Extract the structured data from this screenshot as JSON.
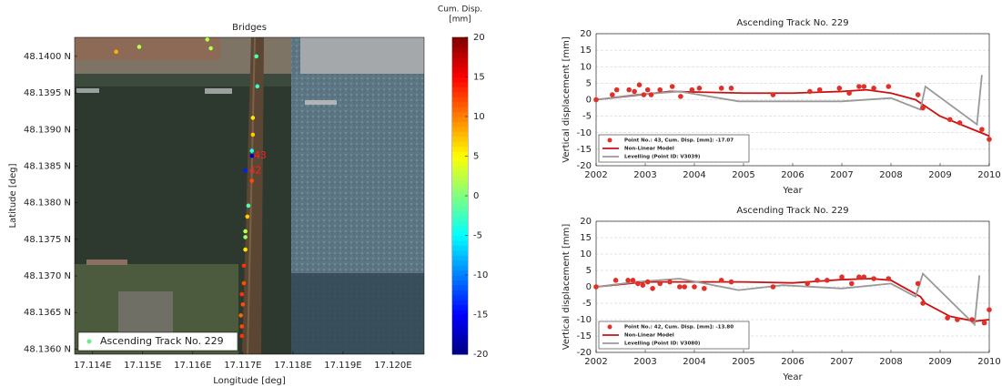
{
  "chart_data": [
    {
      "type": "scatter",
      "title": "Bridges",
      "xlabel": "Longitude [deg]",
      "ylabel": "Latitude [deg]",
      "xlim": [
        17.11364,
        17.12062
      ],
      "ylim": [
        48.13593,
        48.14026
      ],
      "xticks": [
        {
          "value": 17.114,
          "label": "17.114E"
        },
        {
          "value": 17.115,
          "label": "17.115E"
        },
        {
          "value": 17.116,
          "label": "17.116E"
        },
        {
          "value": 17.117,
          "label": "17.117E"
        },
        {
          "value": 17.118,
          "label": "17.118E"
        },
        {
          "value": 17.119,
          "label": "17.119E"
        },
        {
          "value": 17.12,
          "label": "17.120E"
        }
      ],
      "yticks": [
        {
          "value": 48.14,
          "label": "48.1400 N"
        },
        {
          "value": 48.1395,
          "label": "48.1395 N"
        },
        {
          "value": 48.139,
          "label": "48.1390 N"
        },
        {
          "value": 48.1385,
          "label": "48.1385 N"
        },
        {
          "value": 48.138,
          "label": "48.1380 N"
        },
        {
          "value": 48.1375,
          "label": "48.1375 N"
        },
        {
          "value": 48.137,
          "label": "48.1370 N"
        },
        {
          "value": 48.1365,
          "label": "48.1365 N"
        },
        {
          "value": 48.136,
          "label": "48.1360 N"
        }
      ],
      "colorbar_label": [
        "Cum. Disp.",
        "[mm]"
      ],
      "colormap": "jet",
      "clim": [
        -20,
        20
      ],
      "colorbar_ticks": [
        20,
        15,
        10,
        5,
        0,
        -5,
        -10,
        -15,
        -20
      ],
      "legend_entry": "Ascending Track No. 229",
      "legend_color": "#66ee88",
      "x": [
        17.11447,
        17.11493,
        17.11629,
        17.11636,
        17.11727,
        17.11729,
        17.1172,
        17.1172,
        17.11718,
        17.11718,
        17.11705,
        17.11718,
        17.11711,
        17.11709,
        17.11705,
        17.11705,
        17.11705,
        17.11702,
        17.11702,
        17.11698,
        17.117,
        17.11696,
        17.11698,
        17.11698
      ],
      "y": [
        48.140063,
        48.14013,
        48.14023,
        48.14011,
        48.14,
        48.13959,
        48.13916,
        48.13893,
        48.13871,
        48.13864,
        48.13844,
        48.1383,
        48.13796,
        48.13781,
        48.13761,
        48.13753,
        48.13736,
        48.13714,
        48.1369,
        48.13675,
        48.13661,
        48.13646,
        48.13631,
        48.13618
      ],
      "values": [
        8,
        2,
        2,
        2,
        -2,
        -3,
        6,
        7,
        -4,
        -17.07,
        -13.8,
        12,
        -2,
        7,
        2,
        1,
        6,
        13,
        12,
        13,
        12,
        11,
        12,
        13
      ],
      "annotations": [
        {
          "text": "43",
          "x": 17.11722,
          "y": 48.13864
        },
        {
          "text": "42",
          "x": 17.11712,
          "y": 48.13844
        }
      ]
    },
    {
      "type": "line",
      "title": "Ascending Track No. 229",
      "xlabel": "Year",
      "ylabel": "Vertical displacement [mm]",
      "xlim": [
        2002,
        2010
      ],
      "ylim": [
        -20,
        20
      ],
      "xticks": [
        2002,
        2003,
        2004,
        2005,
        2006,
        2007,
        2008,
        2009,
        2010
      ],
      "yticks": [
        -20,
        -15,
        -10,
        -5,
        0,
        5,
        10,
        15,
        20
      ],
      "grid": true,
      "series": [
        {
          "name": "Point No.: 43, Cum. Disp. [mm]: -17.07",
          "color": "#e0302a",
          "mode": "markers",
          "x": [
            2002.0,
            2002.33,
            2002.42,
            2002.67,
            2002.78,
            2002.88,
            2002.97,
            2003.05,
            2003.12,
            2003.3,
            2003.55,
            2003.72,
            2003.95,
            2004.1,
            2004.55,
            2004.75,
            2005.6,
            2006.35,
            2006.55,
            2006.95,
            2007.15,
            2007.35,
            2007.45,
            2007.65,
            2007.95,
            2008.55,
            2008.65,
            2009.2,
            2009.4,
            2009.85,
            2010.0
          ],
          "values": [
            0,
            1.5,
            3,
            3,
            2.5,
            4.5,
            1.5,
            3,
            1.5,
            3,
            4,
            1,
            3,
            3.5,
            3.5,
            3.5,
            1.5,
            2.5,
            3,
            3.5,
            2,
            4,
            4,
            3.5,
            4,
            1.5,
            -2.5,
            -6,
            -7,
            -9,
            -12
          ]
        },
        {
          "name": "Non-Linear Model",
          "color": "#cc1111",
          "mode": "lines",
          "x": [
            2002,
            2003.5,
            2005,
            2006,
            2007,
            2007.5,
            2008,
            2008.5,
            2009,
            2009.5,
            2010
          ],
          "values": [
            0,
            2.5,
            2,
            2,
            2.5,
            3,
            2,
            0,
            -5,
            -8,
            -11
          ]
        },
        {
          "name": "Levelling (Point ID: V3039)",
          "color": "#999999",
          "mode": "lines",
          "x": [
            2002,
            2002.8,
            2003.7,
            2004.1,
            2004.9,
            2007,
            2008,
            2008.6,
            2008.7,
            2009.75,
            2009.85
          ],
          "values": [
            0,
            1.5,
            2.5,
            1.5,
            -0.5,
            -0.5,
            0.5,
            -3,
            4,
            -7.5,
            7.5
          ]
        }
      ]
    },
    {
      "type": "line",
      "title": "Ascending Track No. 229",
      "xlabel": "Year",
      "ylabel": "Vertical displacement [mm]",
      "xlim": [
        2002,
        2010
      ],
      "ylim": [
        -20,
        20
      ],
      "xticks": [
        2002,
        2003,
        2004,
        2005,
        2006,
        2007,
        2008,
        2009,
        2010
      ],
      "yticks": [
        -20,
        -15,
        -10,
        -5,
        0,
        5,
        10,
        15,
        20
      ],
      "grid": true,
      "series": [
        {
          "name": "Point No.: 42, Cum. Disp. [mm]: -13.80",
          "color": "#e0302a",
          "mode": "markers",
          "x": [
            2002.0,
            2002.4,
            2002.65,
            2002.75,
            2002.85,
            2002.95,
            2003.05,
            2003.15,
            2003.3,
            2003.5,
            2003.7,
            2003.8,
            2004.0,
            2004.2,
            2004.55,
            2004.75,
            2005.6,
            2006.3,
            2006.5,
            2006.7,
            2007.0,
            2007.2,
            2007.35,
            2007.45,
            2007.65,
            2007.95,
            2008.55,
            2008.65,
            2009.15,
            2009.35,
            2009.65,
            2009.9,
            2010.0
          ],
          "values": [
            0,
            2,
            2,
            2,
            1,
            0.5,
            1.5,
            -0.5,
            1,
            1.5,
            0,
            0,
            0,
            -0.5,
            2,
            1.5,
            0,
            1,
            2,
            2,
            3,
            1,
            3,
            3,
            2.5,
            2.5,
            1,
            -5,
            -9.5,
            -10,
            -10,
            -11,
            -7
          ]
        },
        {
          "name": "Non-Linear Model",
          "color": "#cc1111",
          "mode": "lines",
          "x": [
            2002,
            2003,
            2004,
            2005,
            2006,
            2007,
            2007.6,
            2008,
            2008.6,
            2008.7,
            2009.2,
            2009.7,
            2010
          ],
          "values": [
            0,
            1.5,
            1.5,
            1.5,
            1.2,
            2.2,
            2.5,
            2,
            -3,
            -5,
            -9,
            -10.5,
            -10
          ]
        },
        {
          "name": "Levelling (Point ID: V3080)",
          "color": "#999999",
          "mode": "lines",
          "x": [
            2002,
            2002.8,
            2003.7,
            2004.9,
            2005.8,
            2007,
            2008,
            2008.5,
            2008.65,
            2009.7,
            2009.8
          ],
          "values": [
            0,
            1.5,
            2.5,
            -1,
            0.5,
            -0.5,
            1,
            -3,
            4,
            -11.5,
            3.5
          ]
        }
      ]
    }
  ]
}
